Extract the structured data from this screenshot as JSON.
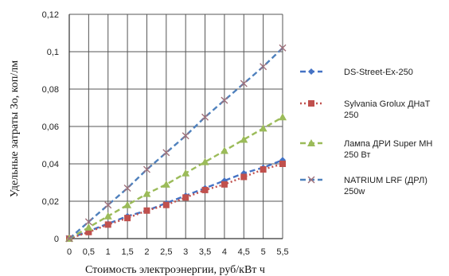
{
  "chart_data": {
    "type": "line",
    "xlabel": "Стоимость электроэнергии, руб/кВт ч",
    "ylabel": "Удельные затраты Зо, коп/лм",
    "x_ticks": [
      "0",
      "0,5",
      "1",
      "1,5",
      "2",
      "2,5",
      "3",
      "3,5",
      "4",
      "4,5",
      "5",
      "5,5"
    ],
    "y_ticks": [
      "0",
      "0,02",
      "0,04",
      "0,06",
      "0,08",
      "0,1",
      "0,12"
    ],
    "x": [
      0,
      0.5,
      1,
      1.5,
      2,
      2.5,
      3,
      3.5,
      4,
      4.5,
      5,
      5.5
    ],
    "xlim": [
      0,
      5.5
    ],
    "ylim": [
      0,
      0.12
    ],
    "grid": true,
    "legend_position": "right",
    "series": [
      {
        "name": "DS-Street-Ex-250",
        "color": "#4472c4",
        "marker": "diamond",
        "line": "dashed",
        "values": [
          0,
          0.004,
          0.008,
          0.012,
          0.015,
          0.019,
          0.023,
          0.027,
          0.031,
          0.035,
          0.038,
          0.042
        ]
      },
      {
        "name": "Sylvania Grolux ДНаТ 250",
        "color": "#c0504d",
        "marker": "square",
        "line": "dotted",
        "values": [
          0,
          0.0035,
          0.0075,
          0.011,
          0.015,
          0.018,
          0.022,
          0.026,
          0.029,
          0.033,
          0.037,
          0.04
        ]
      },
      {
        "name": "Лампа ДРИ Super MH 250 Вт",
        "color": "#9bbb59",
        "marker": "triangle",
        "line": "dashed",
        "values": [
          0,
          0.006,
          0.012,
          0.018,
          0.024,
          0.029,
          0.035,
          0.041,
          0.047,
          0.053,
          0.059,
          0.065
        ]
      },
      {
        "name": "NATRIUM LRF (ДРЛ) 250w",
        "color": "#4f81bd",
        "marker": "x",
        "line": "dashed",
        "values": [
          0,
          0.009,
          0.018,
          0.027,
          0.037,
          0.046,
          0.055,
          0.065,
          0.074,
          0.083,
          0.092,
          0.102
        ]
      }
    ],
    "legend_lines": [
      [
        "DS-Street-Ex-250"
      ],
      [
        "Sylvania Grolux ДНаТ",
        "250"
      ],
      [
        "Лампа ДРИ Super MH",
        "250 Вт"
      ],
      [
        "NATRIUM LRF (ДРЛ)",
        "250w"
      ]
    ]
  }
}
